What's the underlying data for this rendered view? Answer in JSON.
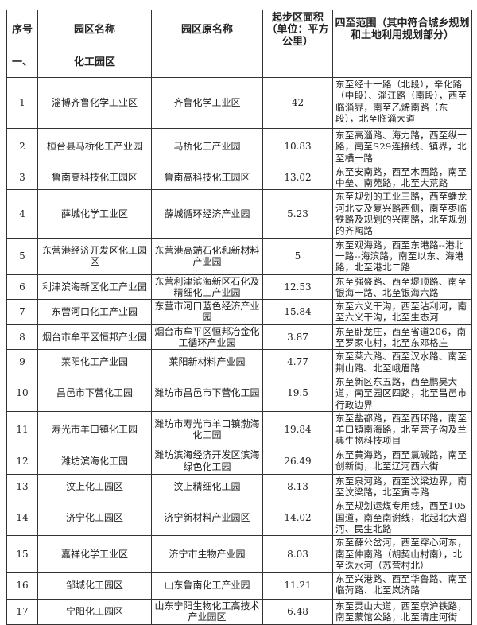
{
  "headers": [
    "序号",
    "园区名称",
    "园区原名称",
    "起步区面积（单位：平方公里）",
    "四至范围（其中符合城乡规划和土地利用规划部分）"
  ],
  "section": {
    "index": "一、",
    "name": "化工园区"
  },
  "rows": [
    {
      "no": "1",
      "name": "淄博齐鲁化学工业区",
      "orig": "齐鲁化学工业区",
      "area": "42",
      "range": "东至经十一路（北段），辛化路（中段）、淄江路（南段），西至临淄界，南至乙烯南路（东段），北至临淄大道"
    },
    {
      "no": "2",
      "name": "桓台县马桥化工产业园",
      "orig": "马桥化工产业园",
      "area": "10.83",
      "range": "东至高淄路、海力路，西至纵一路，南至S29连接线、镇界，北至横一路"
    },
    {
      "no": "3",
      "name": "鲁南高科技化工园区",
      "orig": "鲁南高科技化工园区",
      "area": "13.02",
      "range": "东至安南路，西至木西路，南至中垒、南苑路，北至大荒路"
    },
    {
      "no": "4",
      "name": "薛城化学工业区",
      "orig": "薛城循环经济产业园",
      "area": "5.23",
      "range": "东至规划的工业三路，西至蟠龙河北支及复兴路西侧，南至枣临铁路及规划的兴南路，北至规划的齐陶路"
    },
    {
      "no": "5",
      "name": "东营港经济开发区化工园区",
      "orig": "东营港高端石化和新材料产业园",
      "area": "5",
      "range": "东至观海路，西至东港路--港北一路--海滨路，南至以东、海港路，北至港北二路"
    },
    {
      "no": "6",
      "name": "利津滨海新区化工产业园",
      "orig": "东营利津滨海新区石化及精细化工产业园",
      "area": "12.53",
      "range": "东至强盛路、西至堤顶路、南至银海一路、北至银海六路"
    },
    {
      "no": "7",
      "name": "东营河口化工产业园",
      "orig": "东营市河口蓝色经济产业园",
      "area": "15.84",
      "range": "东至六义干沟，西至沾利河，南至六义干沟，北至生态河"
    },
    {
      "no": "8",
      "name": "烟台市牟平区恒邦产业园",
      "orig": "烟台市牟平区恒邦冶金化工循环产业园",
      "area": "3.87",
      "range": "东至卧龙庄，西至省道206，南至罗家屯村，北至东邓格庄"
    },
    {
      "no": "9",
      "name": "莱阳化工产业园",
      "orig": "莱阳新材料产业园",
      "area": "4.77",
      "range": "东至莱六路、西至汉水路、南至荆山路、北至峨眉路"
    },
    {
      "no": "10",
      "name": "昌邑市下营化工园",
      "orig": "潍坊市昌邑市下营化工园",
      "area": "19.5",
      "range": "东至新区东五路，西至鹏昊大道，南至园区四路，北至昌邑市行政边界"
    },
    {
      "no": "11",
      "name": "寿光市羊口镇化工园",
      "orig": "潍坊市寿光市羊口镇渤海化工园",
      "area": "19.84",
      "range": "东至盐都路，西至西环路，南至羊口镇南海路，北至营子沟及兰典生物科技项目"
    },
    {
      "no": "12",
      "name": "潍坊滨海化工园",
      "orig": "潍坊滨海经济开发区滨海绿色化工园",
      "area": "26.49",
      "range": "东至黄海路，西至氯碱路，南至创新街，北至辽河西六街"
    },
    {
      "no": "13",
      "name": "汶上化工园区",
      "orig": "汶上精细化工园",
      "area": "8.13",
      "range": "东至泉河路，西至汶梁边界，南至汶梁路，北至寅寺路"
    },
    {
      "no": "14",
      "name": "济宁化工园区",
      "orig": "济宁新材料产业园区",
      "area": "14.02",
      "range": "东至规划运煤专用线，西至105国道，南至南谢线，北起北大溜河、民生北路"
    },
    {
      "no": "15",
      "name": "嘉祥化学工业区",
      "orig": "济宁市生物产业园",
      "area": "8.03",
      "range": "东至薛公岔河，西至穿心河东，南至仲南路（胡契山村南），北至洙水河（苏营村北）"
    },
    {
      "no": "16",
      "name": "邹城化工园区",
      "orig": "山东鲁南化工产业园",
      "area": "11.21",
      "range": "东至兴港路、西至华鲁路、南至临菏路、北至岚济路"
    },
    {
      "no": "17",
      "name": "宁阳化工园区",
      "orig": "山东宁阳生物化工高技术产业园区",
      "area": "6.48",
      "range": "东至灵山大道，西至京沪铁路，南至蒙馆公路，北至清庄河街"
    }
  ]
}
